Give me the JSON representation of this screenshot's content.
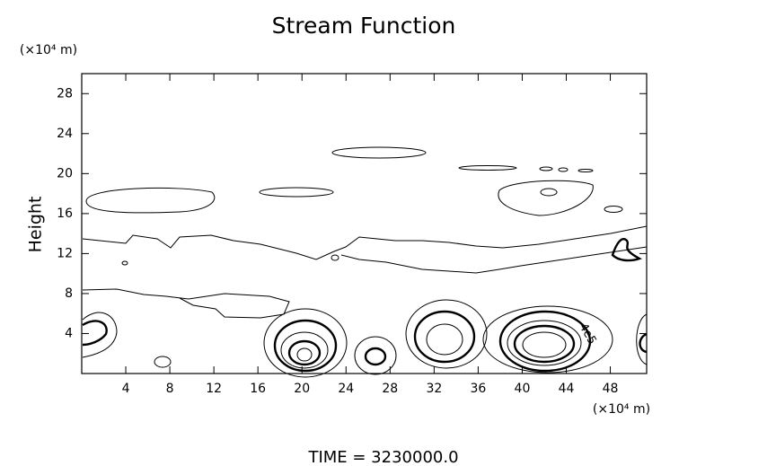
{
  "chart_data": {
    "type": "contour",
    "title": "Stream Function",
    "y_unit_label": "(×10⁴ m)",
    "x_unit_label": "(×10⁴ m)",
    "ylabel": "Height",
    "annotation": "4e5",
    "footer": "TIME = 3230000.0",
    "xlim": [
      0,
      51.3
    ],
    "ylim": [
      0,
      30
    ],
    "xticks": [
      4,
      8,
      12,
      16,
      20,
      24,
      28,
      32,
      36,
      40,
      44,
      48
    ],
    "yticks": [
      4,
      8,
      12,
      16,
      20,
      24,
      28
    ],
    "color": "#000000"
  }
}
